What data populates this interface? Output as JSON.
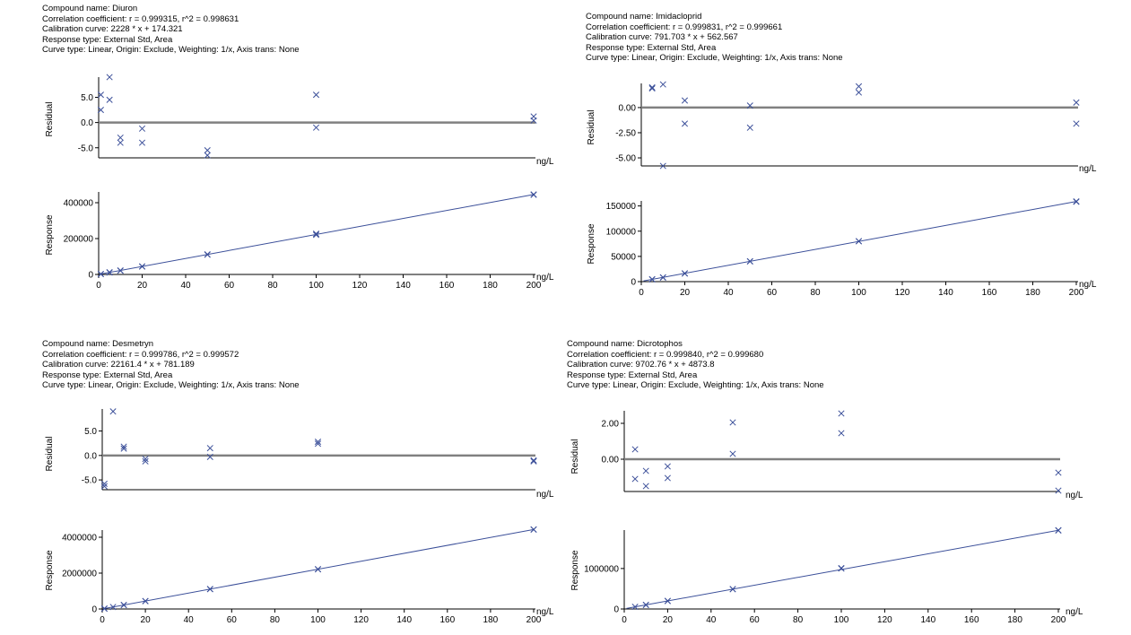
{
  "charts": [
    {
      "header": {
        "compound": "Compound name: Diuron",
        "correlation": "Correlation coefficient: r = 0.999315, r^2 = 0.998631",
        "calibration": "Calibration curve: 2228 * x + 174.321",
        "response_type": "Response type: External Std, Area",
        "curve_type": "Curve type: Linear, Origin: Exclude, Weighting: 1/x, Axis trans: None"
      },
      "residual_ylabel": "Residual",
      "response_ylabel": "Response",
      "x_unit_label": "ng/L"
    },
    {
      "header": {
        "compound": "Compound name: Imidacloprid",
        "correlation": "Correlation coefficient: r = 0.999831, r^2 = 0.999661",
        "calibration": "Calibration curve: 791.703 * x + 562.567",
        "response_type": "Response type: External Std, Area",
        "curve_type": "Curve type: Linear, Origin: Exclude, Weighting: 1/x, Axis trans: None"
      },
      "residual_ylabel": "Residual",
      "response_ylabel": "Response",
      "x_unit_label": "ng/L"
    },
    {
      "header": {
        "compound": "Compound name: Desmetryn",
        "correlation": "Correlation coefficient: r = 0.999786, r^2 = 0.999572",
        "calibration": "Calibration curve: 22161.4 * x + 781.189",
        "response_type": "Response type: External Std, Area",
        "curve_type": "Curve type: Linear, Origin: Exclude, Weighting: 1/x, Axis trans: None"
      },
      "residual_ylabel": "Residual",
      "response_ylabel": "Response",
      "x_unit_label": "ng/L"
    },
    {
      "header": {
        "compound": "Compound name: Dicrotophos",
        "correlation": "Correlation coefficient: r = 0.999840, r^2 = 0.999680",
        "calibration": "Calibration curve: 9702.76 * x + 4873.8",
        "response_type": "Response type: External Std, Area",
        "curve_type": "Curve type: Linear, Origin: Exclude, Weighting: 1/x, Axis trans: None"
      },
      "residual_ylabel": "Residual",
      "response_ylabel": "Response",
      "x_unit_label": "ng/L"
    }
  ],
  "colors": {
    "marker": "#3b4f99",
    "fit_line": "#3b4f99",
    "zero_line": "#808080",
    "axis": "#000000"
  },
  "chart_data": [
    {
      "type": "scatter",
      "title": "Diuron",
      "residual": {
        "ylabel": "Residual",
        "xlabel": "ng/L",
        "ylim": [
          -7,
          9
        ],
        "y_ticks": [
          "5.0",
          "0.0",
          "-5.0"
        ],
        "y_tick_values": [
          5,
          0,
          -5
        ],
        "zero_line": true,
        "points": [
          [
            1,
            5.5
          ],
          [
            1,
            2.5
          ],
          [
            5,
            9
          ],
          [
            5,
            4.5
          ],
          [
            10,
            -3
          ],
          [
            10,
            -4
          ],
          [
            20,
            -1.2
          ],
          [
            20,
            -4
          ],
          [
            50,
            -5.5
          ],
          [
            50,
            -6.5
          ],
          [
            100,
            5.5
          ],
          [
            100,
            -1
          ],
          [
            200,
            1.2
          ],
          [
            200,
            0.4
          ]
        ]
      },
      "response": {
        "ylabel": "Response",
        "xlabel": "ng/L",
        "xlim": [
          0,
          200
        ],
        "ylim": [
          0,
          460000
        ],
        "y_ticks": [
          "400000",
          "200000",
          "0"
        ],
        "y_tick_values": [
          400000,
          200000,
          0
        ],
        "x_ticks": [
          "0",
          "20",
          "40",
          "60",
          "80",
          "100",
          "120",
          "140",
          "160",
          "180",
          "200"
        ],
        "x_tick_values": [
          0,
          20,
          40,
          60,
          80,
          100,
          120,
          140,
          160,
          180,
          200
        ],
        "fit": {
          "slope": 2228,
          "intercept": 174.321
        },
        "points": [
          [
            1,
            2300
          ],
          [
            1,
            2500
          ],
          [
            5,
            11000
          ],
          [
            5,
            12000
          ],
          [
            10,
            21000
          ],
          [
            10,
            22000
          ],
          [
            20,
            44000
          ],
          [
            20,
            45000
          ],
          [
            50,
            110000
          ],
          [
            50,
            112000
          ],
          [
            100,
            227000
          ],
          [
            100,
            221000
          ],
          [
            200,
            446000
          ],
          [
            200,
            444000
          ]
        ]
      }
    },
    {
      "type": "scatter",
      "title": "Imidacloprid",
      "residual": {
        "ylabel": "Residual",
        "xlabel": "ng/L",
        "ylim": [
          -5.8,
          2.4
        ],
        "y_ticks": [
          "0.00",
          "-2.50",
          "-5.00"
        ],
        "y_tick_values": [
          0,
          -2.5,
          -5
        ],
        "zero_line": true,
        "points": [
          [
            5,
            2.0
          ],
          [
            5,
            1.9
          ],
          [
            10,
            2.3
          ],
          [
            10,
            -5.8
          ],
          [
            20,
            0.7
          ],
          [
            20,
            -1.6
          ],
          [
            50,
            0.2
          ],
          [
            50,
            -2.0
          ],
          [
            100,
            2.1
          ],
          [
            100,
            1.5
          ],
          [
            200,
            0.5
          ],
          [
            200,
            -1.6
          ]
        ]
      },
      "response": {
        "ylabel": "Response",
        "xlabel": "ng/L",
        "xlim": [
          0,
          200
        ],
        "ylim": [
          0,
          160000
        ],
        "y_ticks": [
          "150000",
          "100000",
          "50000",
          "0"
        ],
        "y_tick_values": [
          150000,
          100000,
          50000,
          0
        ],
        "x_ticks": [
          "0",
          "20",
          "40",
          "60",
          "80",
          "100",
          "120",
          "140",
          "160",
          "180",
          "200"
        ],
        "x_tick_values": [
          0,
          20,
          40,
          60,
          80,
          100,
          120,
          140,
          160,
          180,
          200
        ],
        "fit": {
          "slope": 791.703,
          "intercept": 562.567
        },
        "points": [
          [
            5,
            4500
          ],
          [
            5,
            4600
          ],
          [
            10,
            8400
          ],
          [
            10,
            8200
          ],
          [
            20,
            16400
          ],
          [
            20,
            16200
          ],
          [
            50,
            40000
          ],
          [
            50,
            40400
          ],
          [
            100,
            80000
          ],
          [
            100,
            80200
          ],
          [
            200,
            158300
          ],
          [
            200,
            159000
          ]
        ]
      }
    },
    {
      "type": "scatter",
      "title": "Desmetryn",
      "residual": {
        "ylabel": "Residual",
        "xlabel": "ng/L",
        "ylim": [
          -7,
          9.5
        ],
        "y_ticks": [
          "5.0",
          "0.0",
          "-5.0"
        ],
        "y_tick_values": [
          5,
          0,
          -5
        ],
        "zero_line": true,
        "points": [
          [
            1,
            -5.8
          ],
          [
            1,
            -6.3
          ],
          [
            5,
            9.0
          ],
          [
            10,
            1.8
          ],
          [
            10,
            1.4
          ],
          [
            20,
            -0.7
          ],
          [
            20,
            -1.2
          ],
          [
            50,
            1.5
          ],
          [
            50,
            -0.3
          ],
          [
            100,
            2.8
          ],
          [
            100,
            2.4
          ],
          [
            200,
            -1.2
          ],
          [
            200,
            -1.0
          ]
        ]
      },
      "response": {
        "ylabel": "Response",
        "xlabel": "ng/L",
        "xlim": [
          0,
          200
        ],
        "ylim": [
          0,
          4400000
        ],
        "y_ticks": [
          "4000000",
          "2000000",
          "0"
        ],
        "y_tick_values": [
          4000000,
          2000000,
          0
        ],
        "x_ticks": [
          "0",
          "20",
          "40",
          "60",
          "80",
          "100",
          "120",
          "140",
          "160",
          "180",
          "200"
        ],
        "x_tick_values": [
          0,
          20,
          40,
          60,
          80,
          100,
          120,
          140,
          160,
          180,
          200
        ],
        "fit": {
          "slope": 22161.4,
          "intercept": 781.189
        },
        "points": [
          [
            1,
            23000
          ],
          [
            1,
            22500
          ],
          [
            5,
            112000
          ],
          [
            10,
            223000
          ],
          [
            10,
            222000
          ],
          [
            20,
            443000
          ],
          [
            20,
            442000
          ],
          [
            50,
            1109000
          ],
          [
            50,
            1108000
          ],
          [
            100,
            2218000
          ],
          [
            100,
            2217000
          ],
          [
            200,
            4430000
          ],
          [
            200,
            4432000
          ]
        ]
      }
    },
    {
      "type": "scatter",
      "title": "Dicrotophos",
      "residual": {
        "ylabel": "Residual",
        "xlabel": "ng/L",
        "ylim": [
          -1.8,
          2.7
        ],
        "y_ticks": [
          "2.00",
          "0.00"
        ],
        "y_tick_values": [
          2,
          0
        ],
        "zero_line": true,
        "points": [
          [
            5,
            0.55
          ],
          [
            5,
            -1.1
          ],
          [
            10,
            -0.65
          ],
          [
            10,
            -1.5
          ],
          [
            20,
            -0.4
          ],
          [
            20,
            -1.05
          ],
          [
            50,
            2.05
          ],
          [
            50,
            0.3
          ],
          [
            100,
            2.55
          ],
          [
            100,
            1.45
          ],
          [
            200,
            -0.75
          ],
          [
            200,
            -1.75
          ]
        ]
      },
      "response": {
        "ylabel": "Response",
        "xlabel": "ng/L",
        "xlim": [
          0,
          200
        ],
        "ylim": [
          0,
          1950000
        ],
        "y_ticks": [
          "1000000",
          "0"
        ],
        "y_tick_values": [
          1000000,
          0
        ],
        "x_ticks": [
          "0",
          "20",
          "40",
          "60",
          "80",
          "100",
          "120",
          "140",
          "160",
          "180",
          "200"
        ],
        "x_tick_values": [
          0,
          20,
          40,
          60,
          80,
          100,
          120,
          140,
          160,
          180,
          200
        ],
        "fit": {
          "slope": 9702.76,
          "intercept": 4873.8
        },
        "points": [
          [
            5,
            53000
          ],
          [
            10,
            102000
          ],
          [
            10,
            101000
          ],
          [
            20,
            199000
          ],
          [
            20,
            198000
          ],
          [
            50,
            490000
          ],
          [
            50,
            491000
          ],
          [
            100,
            1000000
          ],
          [
            100,
            1010000
          ],
          [
            200,
            1945000
          ],
          [
            200,
            1941000
          ]
        ]
      }
    }
  ]
}
